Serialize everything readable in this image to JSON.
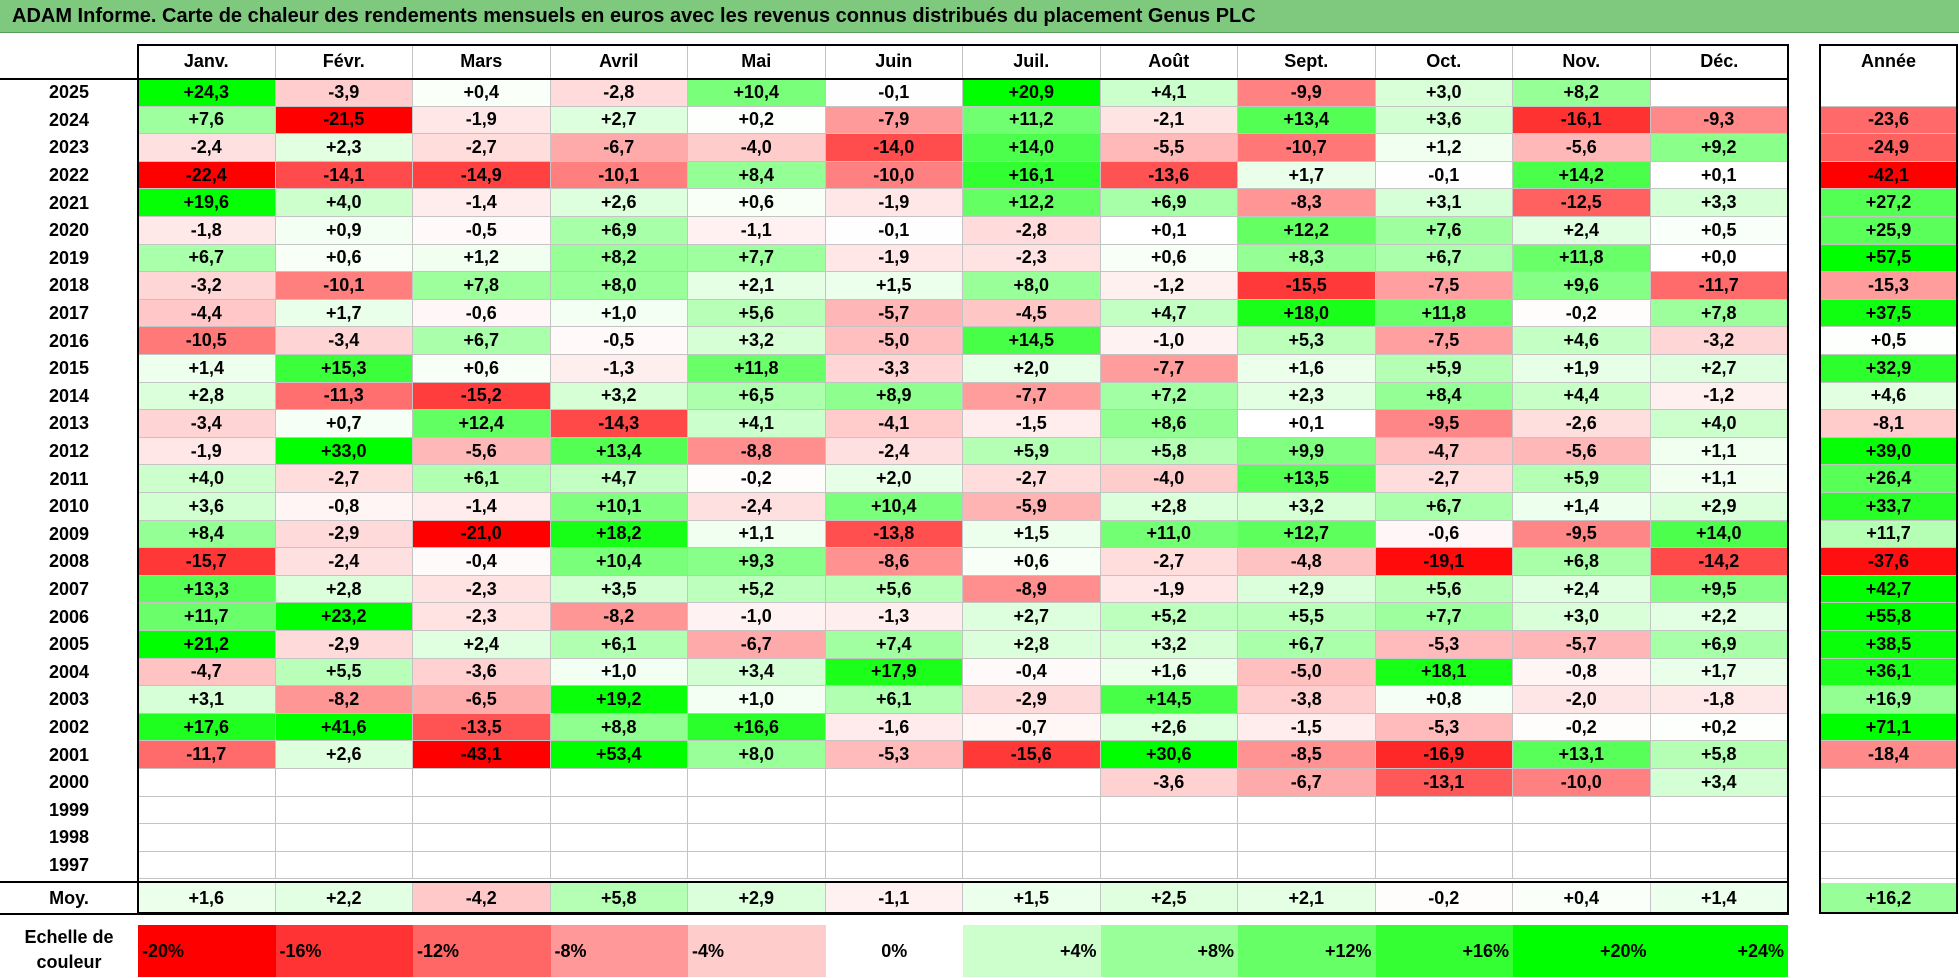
{
  "title": "ADAM Informe. Carte de chaleur des rendements mensuels en euros avec les revenus connus distribués du placement Genus PLC",
  "chart_data": {
    "type": "heatmap",
    "title": "ADAM Informe. Carte de chaleur des rendements mensuels en euros avec les revenus connus distribués du placement Genus PLC",
    "months": [
      "Janv.",
      "Févr.",
      "Mars",
      "Avril",
      "Mai",
      "Juin",
      "Juil.",
      "Août",
      "Sept.",
      "Oct.",
      "Nov.",
      "Déc."
    ],
    "year_column_label": "Année",
    "average_row_label": "Moy.",
    "rows": [
      {
        "year": "2025",
        "values": [
          "+24,3",
          "-3,9",
          "+0,4",
          "-2,8",
          "+10,4",
          "-0,1",
          "+20,9",
          "+4,1",
          "-9,9",
          "+3,0",
          "+8,2",
          ""
        ],
        "annual": ""
      },
      {
        "year": "2024",
        "values": [
          "+7,6",
          "-21,5",
          "-1,9",
          "+2,7",
          "+0,2",
          "-7,9",
          "+11,2",
          "-2,1",
          "+13,4",
          "+3,6",
          "-16,1",
          "-9,3"
        ],
        "annual": "-23,6"
      },
      {
        "year": "2023",
        "values": [
          "-2,4",
          "+2,3",
          "-2,7",
          "-6,7",
          "-4,0",
          "-14,0",
          "+14,0",
          "-5,5",
          "-10,7",
          "+1,2",
          "-5,6",
          "+9,2"
        ],
        "annual": "-24,9"
      },
      {
        "year": "2022",
        "values": [
          "-22,4",
          "-14,1",
          "-14,9",
          "-10,1",
          "+8,4",
          "-10,0",
          "+16,1",
          "-13,6",
          "+1,7",
          "-0,1",
          "+14,2",
          "+0,1"
        ],
        "annual": "-42,1"
      },
      {
        "year": "2021",
        "values": [
          "+19,6",
          "+4,0",
          "-1,4",
          "+2,6",
          "+0,6",
          "-1,9",
          "+12,2",
          "+6,9",
          "-8,3",
          "+3,1",
          "-12,5",
          "+3,3"
        ],
        "annual": "+27,2"
      },
      {
        "year": "2020",
        "values": [
          "-1,8",
          "+0,9",
          "-0,5",
          "+6,9",
          "-1,1",
          "-0,1",
          "-2,8",
          "+0,1",
          "+12,2",
          "+7,6",
          "+2,4",
          "+0,5"
        ],
        "annual": "+25,9"
      },
      {
        "year": "2019",
        "values": [
          "+6,7",
          "+0,6",
          "+1,2",
          "+8,2",
          "+7,7",
          "-1,9",
          "-2,3",
          "+0,6",
          "+8,3",
          "+6,7",
          "+11,8",
          "+0,0"
        ],
        "annual": "+57,5"
      },
      {
        "year": "2018",
        "values": [
          "-3,2",
          "-10,1",
          "+7,8",
          "+8,0",
          "+2,1",
          "+1,5",
          "+8,0",
          "-1,2",
          "-15,5",
          "-7,5",
          "+9,6",
          "-11,7"
        ],
        "annual": "-15,3"
      },
      {
        "year": "2017",
        "values": [
          "-4,4",
          "+1,7",
          "-0,6",
          "+1,0",
          "+5,6",
          "-5,7",
          "-4,5",
          "+4,7",
          "+18,0",
          "+11,8",
          "-0,2",
          "+7,8"
        ],
        "annual": "+37,5"
      },
      {
        "year": "2016",
        "values": [
          "-10,5",
          "-3,4",
          "+6,7",
          "-0,5",
          "+3,2",
          "-5,0",
          "+14,5",
          "-1,0",
          "+5,3",
          "-7,5",
          "+4,6",
          "-3,2"
        ],
        "annual": "+0,5"
      },
      {
        "year": "2015",
        "values": [
          "+1,4",
          "+15,3",
          "+0,6",
          "-1,3",
          "+11,8",
          "-3,3",
          "+2,0",
          "-7,7",
          "+1,6",
          "+5,9",
          "+1,9",
          "+2,7"
        ],
        "annual": "+32,9"
      },
      {
        "year": "2014",
        "values": [
          "+2,8",
          "-11,3",
          "-15,2",
          "+3,2",
          "+6,5",
          "+8,9",
          "-7,7",
          "+7,2",
          "+2,3",
          "+8,4",
          "+4,4",
          "-1,2"
        ],
        "annual": "+4,6"
      },
      {
        "year": "2013",
        "values": [
          "-3,4",
          "+0,7",
          "+12,4",
          "-14,3",
          "+4,1",
          "-4,1",
          "-1,5",
          "+8,6",
          "+0,1",
          "-9,5",
          "-2,6",
          "+4,0"
        ],
        "annual": "-8,1"
      },
      {
        "year": "2012",
        "values": [
          "-1,9",
          "+33,0",
          "-5,6",
          "+13,4",
          "-8,8",
          "-2,4",
          "+5,9",
          "+5,8",
          "+9,9",
          "-4,7",
          "-5,6",
          "+1,1"
        ],
        "annual": "+39,0"
      },
      {
        "year": "2011",
        "values": [
          "+4,0",
          "-2,7",
          "+6,1",
          "+4,7",
          "-0,2",
          "+2,0",
          "-2,7",
          "-4,0",
          "+13,5",
          "-2,7",
          "+5,9",
          "+1,1"
        ],
        "annual": "+26,4"
      },
      {
        "year": "2010",
        "values": [
          "+3,6",
          "-0,8",
          "-1,4",
          "+10,1",
          "-2,4",
          "+10,4",
          "-5,9",
          "+2,8",
          "+3,2",
          "+6,7",
          "+1,4",
          "+2,9"
        ],
        "annual": "+33,7"
      },
      {
        "year": "2009",
        "values": [
          "+8,4",
          "-2,9",
          "-21,0",
          "+18,2",
          "+1,1",
          "-13,8",
          "+1,5",
          "+11,0",
          "+12,7",
          "-0,6",
          "-9,5",
          "+14,0"
        ],
        "annual": "+11,7"
      },
      {
        "year": "2008",
        "values": [
          "-15,7",
          "-2,4",
          "-0,4",
          "+10,4",
          "+9,3",
          "-8,6",
          "+0,6",
          "-2,7",
          "-4,8",
          "-19,1",
          "+6,8",
          "-14,2"
        ],
        "annual": "-37,6"
      },
      {
        "year": "2007",
        "values": [
          "+13,3",
          "+2,8",
          "-2,3",
          "+3,5",
          "+5,2",
          "+5,6",
          "-8,9",
          "-1,9",
          "+2,9",
          "+5,6",
          "+2,4",
          "+9,5"
        ],
        "annual": "+42,7"
      },
      {
        "year": "2006",
        "values": [
          "+11,7",
          "+23,2",
          "-2,3",
          "-8,2",
          "-1,0",
          "-1,3",
          "+2,7",
          "+5,2",
          "+5,5",
          "+7,7",
          "+3,0",
          "+2,2"
        ],
        "annual": "+55,8"
      },
      {
        "year": "2005",
        "values": [
          "+21,2",
          "-2,9",
          "+2,4",
          "+6,1",
          "-6,7",
          "+7,4",
          "+2,8",
          "+3,2",
          "+6,7",
          "-5,3",
          "-5,7",
          "+6,9"
        ],
        "annual": "+38,5"
      },
      {
        "year": "2004",
        "values": [
          "-4,7",
          "+5,5",
          "-3,6",
          "+1,0",
          "+3,4",
          "+17,9",
          "-0,4",
          "+1,6",
          "-5,0",
          "+18,1",
          "-0,8",
          "+1,7"
        ],
        "annual": "+36,1"
      },
      {
        "year": "2003",
        "values": [
          "+3,1",
          "-8,2",
          "-6,5",
          "+19,2",
          "+1,0",
          "+6,1",
          "-2,9",
          "+14,5",
          "-3,8",
          "+0,8",
          "-2,0",
          "-1,8"
        ],
        "annual": "+16,9"
      },
      {
        "year": "2002",
        "values": [
          "+17,6",
          "+41,6",
          "-13,5",
          "+8,8",
          "+16,6",
          "-1,6",
          "-0,7",
          "+2,6",
          "-1,5",
          "-5,3",
          "-0,2",
          "+0,2"
        ],
        "annual": "+71,1"
      },
      {
        "year": "2001",
        "values": [
          "-11,7",
          "+2,6",
          "-43,1",
          "+53,4",
          "+8,0",
          "-5,3",
          "-15,6",
          "+30,6",
          "-8,5",
          "-16,9",
          "+13,1",
          "+5,8"
        ],
        "annual": "-18,4"
      },
      {
        "year": "2000",
        "values": [
          "",
          "",
          "",
          "",
          "",
          "",
          "",
          "-3,6",
          "-6,7",
          "-13,1",
          "-10,0",
          "+3,4"
        ],
        "annual": ""
      },
      {
        "year": "1999",
        "values": [
          "",
          "",
          "",
          "",
          "",
          "",
          "",
          "",
          "",
          "",
          "",
          ""
        ],
        "annual": ""
      },
      {
        "year": "1998",
        "values": [
          "",
          "",
          "",
          "",
          "",
          "",
          "",
          "",
          "",
          "",
          "",
          ""
        ],
        "annual": ""
      },
      {
        "year": "1997",
        "values": [
          "",
          "",
          "",
          "",
          "",
          "",
          "",
          "",
          "",
          "",
          "",
          ""
        ],
        "annual": ""
      }
    ],
    "averages": {
      "values": [
        "+1,6",
        "+2,2",
        "-4,2",
        "+5,8",
        "+2,9",
        "-1,1",
        "+1,5",
        "+2,5",
        "+2,1",
        "-0,2",
        "+0,4",
        "+1,4"
      ],
      "annual": "+16,2"
    },
    "scale": {
      "label": "Echelle de couleur",
      "steps": [
        {
          "label": "-20%",
          "value": -20
        },
        {
          "label": "-16%",
          "value": -16
        },
        {
          "label": "-12%",
          "value": -12
        },
        {
          "label": "-8%",
          "value": -8
        },
        {
          "label": "-4%",
          "value": -4
        },
        {
          "label": "0%",
          "value": 0
        },
        {
          "label": "+4%",
          "value": 4
        },
        {
          "label": "+8%",
          "value": 8
        },
        {
          "label": "+12%",
          "value": 12
        },
        {
          "label": "+16%",
          "value": 16
        },
        {
          "label": "+20%",
          "value": 20
        },
        {
          "label": "+24%",
          "value": 24
        }
      ]
    },
    "colors": {
      "negative_max": "#ff0000",
      "neutral": "#ffffff",
      "positive_max": "#00ff00",
      "title_bar": "#7fc97f"
    }
  }
}
